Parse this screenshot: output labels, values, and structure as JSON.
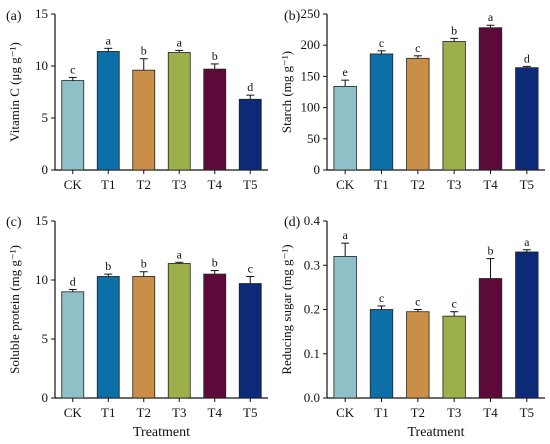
{
  "chart_data": [
    {
      "type": "bar",
      "panel_label": "(a)",
      "ylabel": "Vitamin C (μg g⁻¹)",
      "xlabel": "",
      "categories": [
        "CK",
        "T1",
        "T2",
        "T3",
        "T4",
        "T5"
      ],
      "values": [
        8.6,
        11.4,
        9.6,
        11.3,
        9.7,
        6.8
      ],
      "errors": [
        0.3,
        0.3,
        1.1,
        0.2,
        0.5,
        0.4
      ],
      "letters": [
        "c",
        "a",
        "b",
        "a",
        "b",
        "d"
      ],
      "ylim": [
        0,
        15
      ],
      "yticks": [
        "0",
        "5",
        "10",
        "15"
      ]
    },
    {
      "type": "bar",
      "panel_label": "(b)",
      "ylabel": "Starch (mg g⁻¹)",
      "xlabel": "",
      "categories": [
        "CK",
        "T1",
        "T2",
        "T3",
        "T4",
        "T5"
      ],
      "values": [
        134,
        186,
        179,
        206,
        228,
        164
      ],
      "errors": [
        10,
        5,
        4,
        5,
        4,
        2
      ],
      "letters": [
        "e",
        "c",
        "c",
        "b",
        "a",
        "d"
      ],
      "ylim": [
        0,
        250
      ],
      "yticks": [
        "0",
        "50",
        "100",
        "150",
        "200",
        "250"
      ]
    },
    {
      "type": "bar",
      "panel_label": "(c)",
      "ylabel": "Soluble protein (mg g⁻¹)",
      "xlabel": "Treatment",
      "categories": [
        "CK",
        "T1",
        "T2",
        "T3",
        "T4",
        "T5"
      ],
      "values": [
        9.0,
        10.3,
        10.3,
        11.4,
        10.5,
        9.7
      ],
      "errors": [
        0.2,
        0.2,
        0.4,
        0.1,
        0.3,
        0.6
      ],
      "letters": [
        "d",
        "b",
        "b",
        "a",
        "b",
        "c"
      ],
      "ylim": [
        0,
        15
      ],
      "yticks": [
        "0",
        "5",
        "10",
        "15"
      ]
    },
    {
      "type": "bar",
      "panel_label": "(d)",
      "ylabel": "Reducing sugar (mg g⁻¹)",
      "xlabel": "Treatment",
      "categories": [
        "CK",
        "T1",
        "T2",
        "T3",
        "T4",
        "T5"
      ],
      "values": [
        0.32,
        0.2,
        0.195,
        0.185,
        0.27,
        0.33
      ],
      "errors": [
        0.03,
        0.008,
        0.005,
        0.01,
        0.045,
        0.005
      ],
      "letters": [
        "a",
        "c",
        "c",
        "c",
        "b",
        "a"
      ],
      "ylim": [
        0,
        0.4
      ],
      "yticks": [
        "0.0",
        "0.1",
        "0.2",
        "0.3",
        "0.4"
      ]
    }
  ],
  "colors": {
    "CK": "#8fc0c7",
    "T1": "#0c6fa8",
    "T2": "#c98e48",
    "T3": "#9bb04a",
    "T4": "#5d0a3a",
    "T5": "#0c2a78"
  }
}
